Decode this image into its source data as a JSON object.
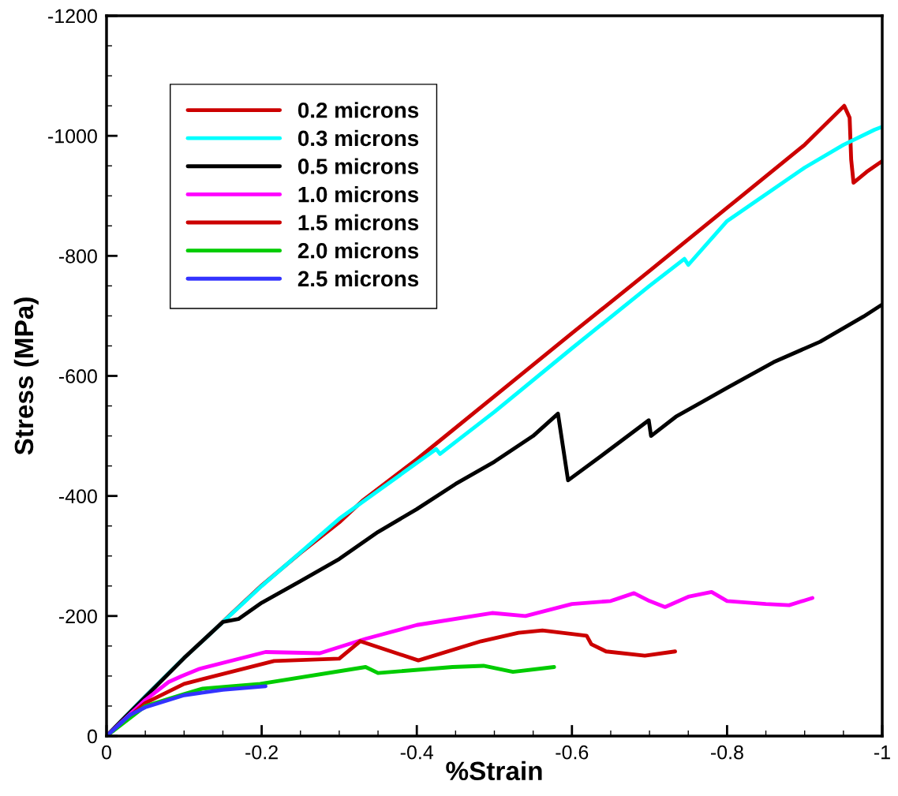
{
  "chart_data": {
    "type": "line",
    "xlabel": "%Strain",
    "ylabel": "Stress (MPa)",
    "xlim": [
      0,
      -1
    ],
    "ylim": [
      0,
      -1200
    ],
    "xticks": [
      0,
      -0.2,
      -0.4,
      -0.6,
      -0.8,
      -1
    ],
    "yticks": [
      0,
      -200,
      -400,
      -600,
      -800,
      -1000,
      -1200
    ],
    "grid": false,
    "legend": "top left",
    "marker": "none",
    "line_style": "solid",
    "series": [
      {
        "name": "0.2 microns",
        "color": "#cc0000",
        "x": [
          0,
          -0.05,
          -0.1,
          -0.2,
          -0.25,
          -0.3,
          -0.33,
          -0.4,
          -0.5,
          -0.6,
          -0.7,
          -0.8,
          -0.9,
          -0.951,
          -0.958,
          -0.96,
          -0.963,
          -0.98,
          -1
        ],
        "values": [
          0,
          -66,
          -130,
          -251,
          -305,
          -356,
          -392,
          -461,
          -566,
          -671,
          -775,
          -880,
          -985,
          -1050,
          -1030,
          -960,
          -922,
          -940,
          -958
        ]
      },
      {
        "name": "0.3 microns",
        "color": "#00ffff",
        "x": [
          0,
          -0.05,
          -0.1,
          -0.2,
          -0.3,
          -0.4,
          -0.425,
          -0.43,
          -0.5,
          -0.6,
          -0.7,
          -0.745,
          -0.75,
          -0.8,
          -0.9,
          -0.95,
          -0.99,
          -1
        ],
        "values": [
          0,
          -66,
          -130,
          -250,
          -362,
          -455,
          -478,
          -470,
          -540,
          -646,
          -750,
          -795,
          -785,
          -858,
          -947,
          -985,
          -1010,
          -1015
        ]
      },
      {
        "name": "0.5 microns",
        "color": "#000000",
        "x": [
          0,
          -0.05,
          -0.1,
          -0.15,
          -0.17,
          -0.2,
          -0.25,
          -0.3,
          -0.35,
          -0.4,
          -0.45,
          -0.5,
          -0.55,
          -0.582,
          -0.595,
          -0.637,
          -0.699,
          -0.702,
          -0.734,
          -0.8,
          -0.86,
          -0.92,
          -0.976,
          -1
        ],
        "values": [
          0,
          -65,
          -130,
          -190,
          -195,
          -222,
          -258,
          -295,
          -340,
          -378,
          -420,
          -457,
          -500,
          -537,
          -426,
          -466,
          -526,
          -500,
          -532,
          -580,
          -623,
          -657,
          -699,
          -719
        ]
      },
      {
        "name": "1.0 microns",
        "color": "#ff00ff",
        "x": [
          0,
          -0.05,
          -0.08,
          -0.097,
          -0.12,
          -0.205,
          -0.275,
          -0.334,
          -0.4,
          -0.497,
          -0.54,
          -0.6,
          -0.65,
          -0.68,
          -0.7,
          -0.72,
          -0.75,
          -0.78,
          -0.8,
          -0.85,
          -0.88,
          -0.91
        ],
        "values": [
          0,
          -60,
          -90,
          -100,
          -112,
          -140,
          -138,
          -162,
          -185,
          -205,
          -200,
          -220,
          -225,
          -238,
          -225,
          -215,
          -232,
          -240,
          -225,
          -220,
          -218,
          -230
        ]
      },
      {
        "name": "1.5 microns",
        "color": "#cc0000",
        "x": [
          0,
          -0.05,
          -0.1,
          -0.216,
          -0.3,
          -0.327,
          -0.402,
          -0.483,
          -0.531,
          -0.562,
          -0.619,
          -0.625,
          -0.644,
          -0.694,
          -0.733
        ],
        "values": [
          0,
          -55,
          -87,
          -125,
          -129,
          -158,
          -126,
          -158,
          -172,
          -176,
          -167,
          -153,
          -141,
          -134,
          -141
        ]
      },
      {
        "name": "2.0 microns",
        "color": "#00cc00",
        "x": [
          0,
          -0.05,
          -0.1,
          -0.124,
          -0.198,
          -0.334,
          -0.35,
          -0.446,
          -0.486,
          -0.524,
          -0.577
        ],
        "values": [
          0,
          -50,
          -70,
          -79,
          -87,
          -115,
          -105,
          -115,
          -117,
          -107,
          -115
        ]
      },
      {
        "name": "2.5 microns",
        "color": "#3333ff",
        "x": [
          0,
          -0.03,
          -0.05,
          -0.1,
          -0.15,
          -0.205
        ],
        "values": [
          0,
          -35,
          -48,
          -68,
          -77,
          -83
        ]
      }
    ]
  }
}
